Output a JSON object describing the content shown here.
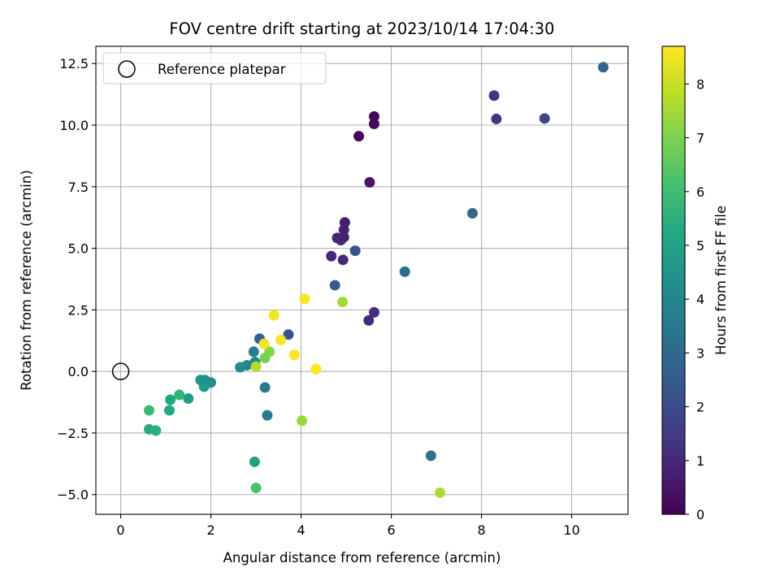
{
  "chart_data": {
    "type": "scatter",
    "title": "FOV centre drift starting at 2023/10/14 17:04:30",
    "xlabel": "Angular distance from reference (arcmin)",
    "ylabel": "Rotation from reference (arcmin)",
    "xlim": [
      -0.55,
      11.25
    ],
    "ylim": [
      -5.8,
      13.2
    ],
    "xticks": [
      0,
      2,
      4,
      6,
      8,
      10
    ],
    "xtick_labels": [
      "0",
      "2",
      "4",
      "6",
      "8",
      "10"
    ],
    "yticks": [
      -5.0,
      -2.5,
      0.0,
      2.5,
      5.0,
      7.5,
      10.0,
      12.5
    ],
    "ytick_labels": [
      "−5.0",
      "−2.5",
      "0.0",
      "2.5",
      "5.0",
      "7.5",
      "10.0",
      "12.5"
    ],
    "grid": true,
    "colormap": "viridis",
    "colorbar": {
      "label": "Hours from first FF file",
      "range": [
        0,
        8.7
      ],
      "ticks": [
        0,
        1,
        2,
        3,
        4,
        5,
        6,
        7,
        8
      ],
      "tick_labels": [
        "0",
        "1",
        "2",
        "3",
        "4",
        "5",
        "6",
        "7",
        "8"
      ]
    },
    "legend": {
      "position": "top-left",
      "entries": [
        "Reference platepar"
      ]
    },
    "reference_point": {
      "x": 0,
      "y": 0
    },
    "points": [
      {
        "x": 5.28,
        "y": 9.55,
        "c": 0.05
      },
      {
        "x": 5.62,
        "y": 10.35,
        "c": 0.15
      },
      {
        "x": 5.62,
        "y": 10.05,
        "c": 0.25
      },
      {
        "x": 5.52,
        "y": 7.68,
        "c": 0.5
      },
      {
        "x": 4.97,
        "y": 6.05,
        "c": 0.7
      },
      {
        "x": 4.95,
        "y": 5.75,
        "c": 0.8
      },
      {
        "x": 4.8,
        "y": 5.42,
        "c": 0.9
      },
      {
        "x": 4.88,
        "y": 5.33,
        "c": 0.95
      },
      {
        "x": 4.95,
        "y": 5.45,
        "c": 0.85
      },
      {
        "x": 4.67,
        "y": 4.68,
        "c": 1.0
      },
      {
        "x": 4.93,
        "y": 4.53,
        "c": 1.05
      },
      {
        "x": 5.5,
        "y": 2.07,
        "c": 1.1
      },
      {
        "x": 5.62,
        "y": 2.4,
        "c": 1.2
      },
      {
        "x": 8.28,
        "y": 11.2,
        "c": 1.3
      },
      {
        "x": 8.33,
        "y": 10.25,
        "c": 1.4
      },
      {
        "x": 9.4,
        "y": 10.27,
        "c": 1.8
      },
      {
        "x": 5.2,
        "y": 4.9,
        "c": 2.2
      },
      {
        "x": 3.72,
        "y": 1.5,
        "c": 2.3
      },
      {
        "x": 4.75,
        "y": 3.5,
        "c": 2.5
      },
      {
        "x": 3.08,
        "y": 1.33,
        "c": 2.6
      },
      {
        "x": 10.7,
        "y": 12.35,
        "c": 2.8
      },
      {
        "x": 7.8,
        "y": 6.42,
        "c": 3.0
      },
      {
        "x": 6.3,
        "y": 4.05,
        "c": 3.1
      },
      {
        "x": 6.88,
        "y": -3.42,
        "c": 3.3
      },
      {
        "x": 3.25,
        "y": -1.78,
        "c": 3.5
      },
      {
        "x": 3.2,
        "y": -0.65,
        "c": 3.6
      },
      {
        "x": 2.95,
        "y": 0.8,
        "c": 3.7
      },
      {
        "x": 2.8,
        "y": 0.25,
        "c": 3.9
      },
      {
        "x": 2.98,
        "y": 0.38,
        "c": 4.0
      },
      {
        "x": 2.65,
        "y": 0.17,
        "c": 4.2
      },
      {
        "x": 2.0,
        "y": -0.45,
        "c": 4.3
      },
      {
        "x": 1.87,
        "y": -0.35,
        "c": 4.4
      },
      {
        "x": 1.77,
        "y": -0.35,
        "c": 4.5
      },
      {
        "x": 1.85,
        "y": -0.62,
        "c": 4.7
      },
      {
        "x": 1.5,
        "y": -1.1,
        "c": 4.8
      },
      {
        "x": 2.97,
        "y": -3.67,
        "c": 5.0
      },
      {
        "x": 1.1,
        "y": -1.15,
        "c": 5.2
      },
      {
        "x": 1.08,
        "y": -1.58,
        "c": 5.3
      },
      {
        "x": 0.63,
        "y": -2.35,
        "c": 5.4
      },
      {
        "x": 0.78,
        "y": -2.4,
        "c": 5.5
      },
      {
        "x": 1.3,
        "y": -0.95,
        "c": 5.7
      },
      {
        "x": 0.63,
        "y": -1.58,
        "c": 5.9
      },
      {
        "x": 3.0,
        "y": -4.73,
        "c": 6.2
      },
      {
        "x": 3.2,
        "y": 0.55,
        "c": 6.9
      },
      {
        "x": 3.3,
        "y": 0.8,
        "c": 7.1
      },
      {
        "x": 4.02,
        "y": -2.0,
        "c": 7.4
      },
      {
        "x": 4.92,
        "y": 2.82,
        "c": 7.5
      },
      {
        "x": 7.08,
        "y": -4.92,
        "c": 7.6
      },
      {
        "x": 3.0,
        "y": 0.2,
        "c": 7.7
      },
      {
        "x": 3.4,
        "y": 2.28,
        "c": 8.5
      },
      {
        "x": 4.08,
        "y": 2.95,
        "c": 8.6
      },
      {
        "x": 3.55,
        "y": 1.28,
        "c": 8.6
      },
      {
        "x": 3.18,
        "y": 1.12,
        "c": 8.5
      },
      {
        "x": 3.85,
        "y": 0.67,
        "c": 8.6
      },
      {
        "x": 4.33,
        "y": 0.1,
        "c": 8.7
      }
    ]
  }
}
